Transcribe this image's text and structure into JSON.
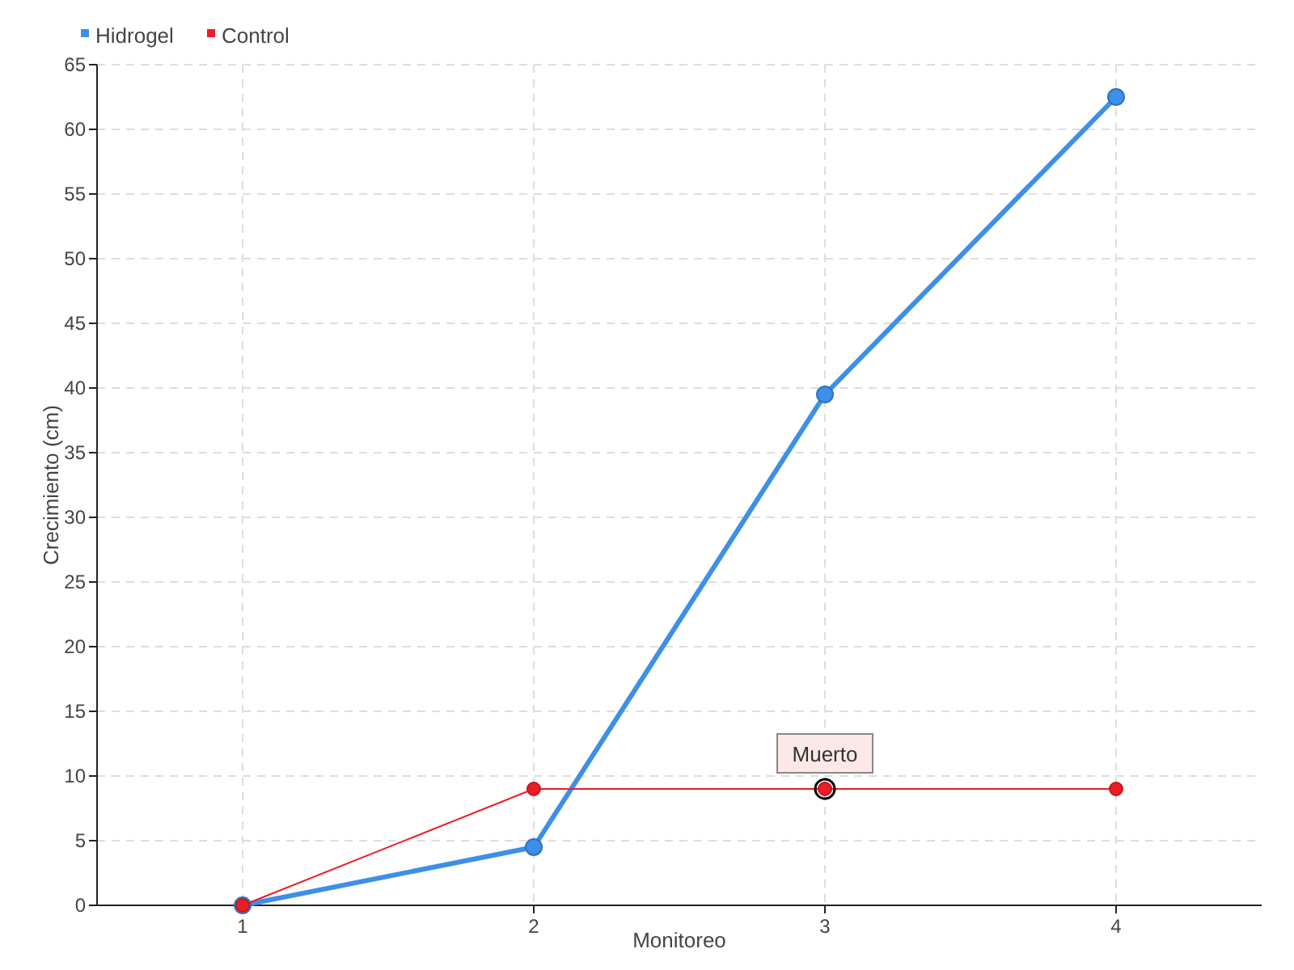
{
  "chart_data": {
    "type": "line",
    "xlabel": "Monitoreo",
    "ylabel": "Crecimiento (cm)",
    "categories": [
      "1",
      "2",
      "3",
      "4"
    ],
    "series": [
      {
        "name": "Hidrogel",
        "color": "#3d8fe8",
        "values": [
          0,
          4.5,
          39.5,
          62.5
        ]
      },
      {
        "name": "Control",
        "color": "#ee1c25",
        "values": [
          0,
          9,
          9,
          9
        ]
      }
    ],
    "ylim": [
      0,
      65
    ],
    "yticks": [
      0,
      5,
      10,
      15,
      20,
      25,
      30,
      35,
      40,
      45,
      50,
      55,
      60,
      65
    ],
    "grid": true,
    "legend": "top left",
    "marker": "circle",
    "line_style": "solid",
    "annotations": [
      {
        "text": "Muerto",
        "x": "3",
        "y": 9
      }
    ]
  }
}
